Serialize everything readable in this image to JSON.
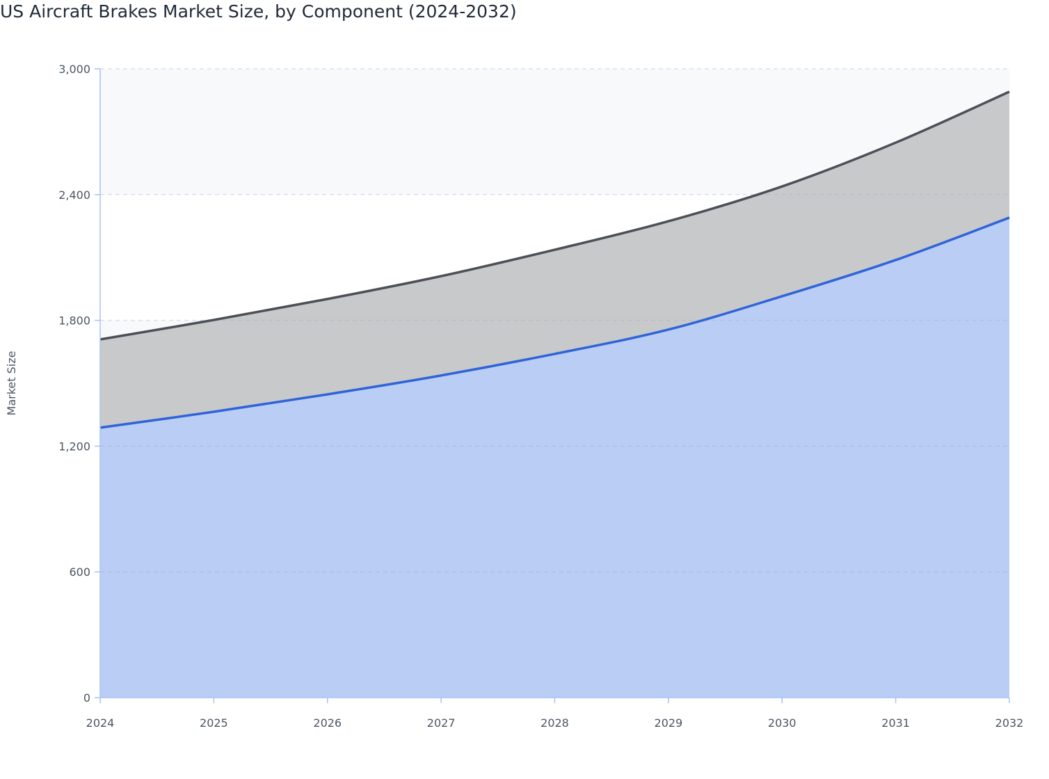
{
  "title": "US Aircraft Brakes Market Size, by Component (2024-2032)",
  "chart_data": {
    "type": "area",
    "stacked": true,
    "title": "US Aircraft Brakes Market Size, by Component (2024-2032)",
    "xlabel": "",
    "ylabel": "Market Size",
    "x": [
      2024,
      2025,
      2026,
      2027,
      2028,
      2029,
      2030,
      2031,
      2032
    ],
    "ylim": [
      0,
      3000
    ],
    "yticks": [
      0,
      600,
      1200,
      1800,
      2400,
      3000
    ],
    "ytick_labels": [
      "0",
      "600",
      "1,200",
      "1,800",
      "2,400",
      "3,000"
    ],
    "xtick_labels": [
      "2024",
      "2025",
      "2026",
      "2027",
      "2028",
      "2029",
      "2030",
      "2031",
      "2032"
    ],
    "grid": "horizontal dashed, alternating bands",
    "legend": "none",
    "series": [
      {
        "values": [
          1288,
          1364,
          1447,
          1537,
          1640,
          1756,
          1915,
          2088,
          2290
        ],
        "color": "#2f64d9",
        "fill": "#bacdf5"
      },
      {
        "values": [
          421,
          438,
          455,
          474,
          497,
          517,
          524,
          560,
          601
        ],
        "color": "#4b5058",
        "fill": "#c8c9cb"
      }
    ]
  }
}
